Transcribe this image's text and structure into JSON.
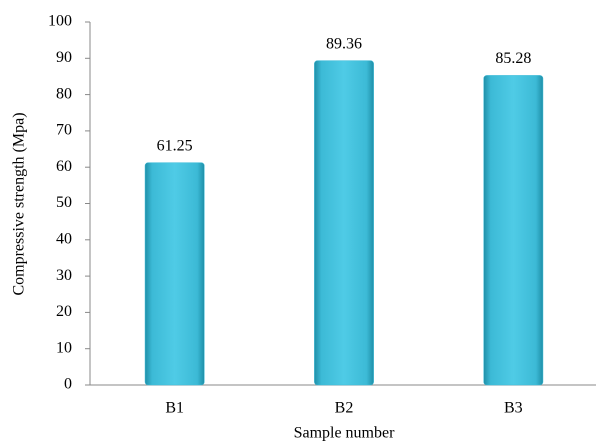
{
  "chart_data": {
    "type": "bar",
    "y_label": "Compressive strength (Mpa)",
    "x_label": "Sample number",
    "categories": [
      "B1",
      "B2",
      "B3"
    ],
    "values": [
      61.25,
      89.36,
      85.28
    ],
    "color": "#3fbcd8",
    "ylim": [
      0,
      100
    ],
    "yticks": [
      0,
      10,
      20,
      30,
      40,
      50,
      60,
      70,
      80,
      90,
      100
    ],
    "grid": false
  }
}
